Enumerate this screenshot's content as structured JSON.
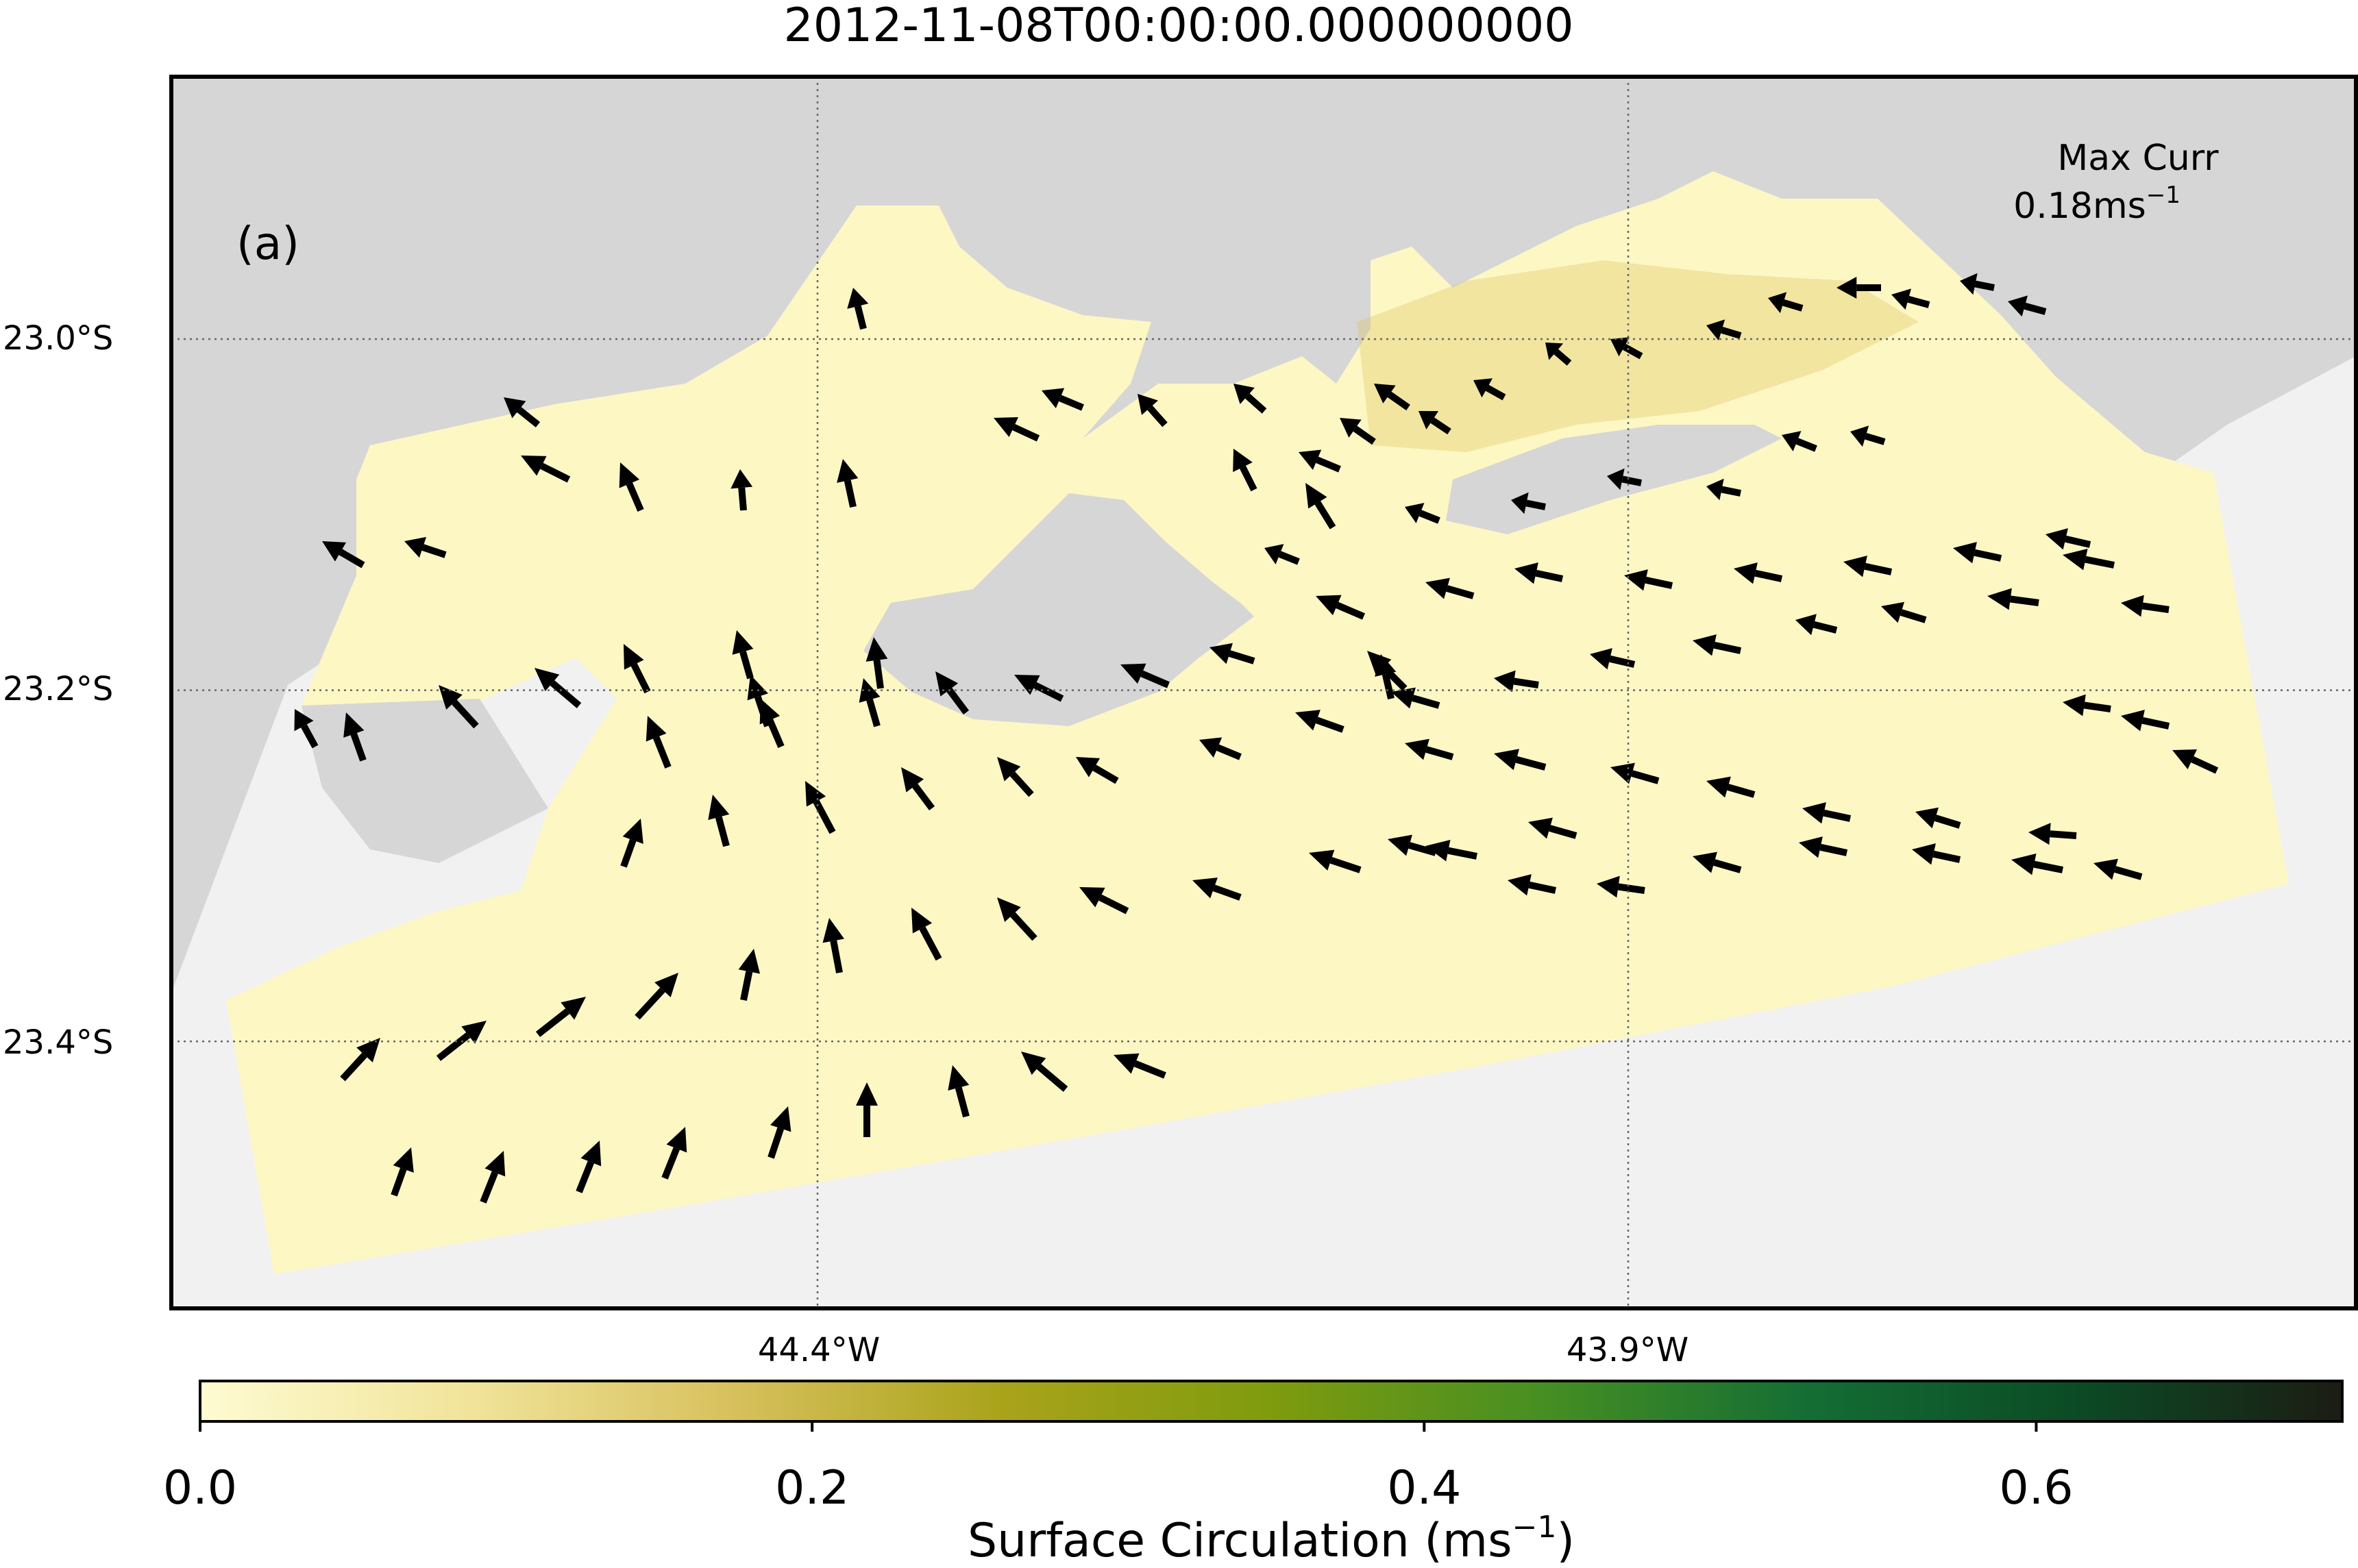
{
  "title": "2012-11-08T00:00:00.000000000",
  "panel_label": "(a)",
  "max_current": {
    "line1": "Max Curr",
    "value": "0.18",
    "unit_base": "ms",
    "unit_exp": "−1"
  },
  "colors": {
    "land": "#d6d6d6",
    "offshore": "#f1f1f1",
    "water_low": "#fdf7c4",
    "water_hot": "#d9c25e",
    "arrows": "#000000",
    "grid": "#666666",
    "colormap": [
      "#fefbd2",
      "#f1e49a",
      "#d7c05c",
      "#a9a31a",
      "#7f9b0e",
      "#478f22",
      "#146e34",
      "#0b4b25",
      "#1c1c14"
    ]
  },
  "axes": {
    "lat_ticks": [
      {
        "value": -23.0,
        "label": "23.0°S"
      },
      {
        "value": -23.2,
        "label": "23.2°S"
      },
      {
        "value": -23.4,
        "label": "23.4°S"
      }
    ],
    "lon_ticks": [
      {
        "value": -44.4,
        "label": "44.4°W"
      },
      {
        "value": -43.9,
        "label": "43.9°W"
      }
    ],
    "grid": "dotted"
  },
  "colorbar": {
    "label_base": "Surface Circulation (ms",
    "label_exp": "−1",
    "label_end": ")",
    "range": [
      0.0,
      0.7
    ],
    "ticks": [
      {
        "value": 0.0,
        "label": "0.0"
      },
      {
        "value": 0.2,
        "label": "0.2"
      },
      {
        "value": 0.4,
        "label": "0.4"
      },
      {
        "value": 0.6,
        "label": "0.6"
      }
    ]
  },
  "icons": {
    "vectors": "arrow-icon"
  }
}
